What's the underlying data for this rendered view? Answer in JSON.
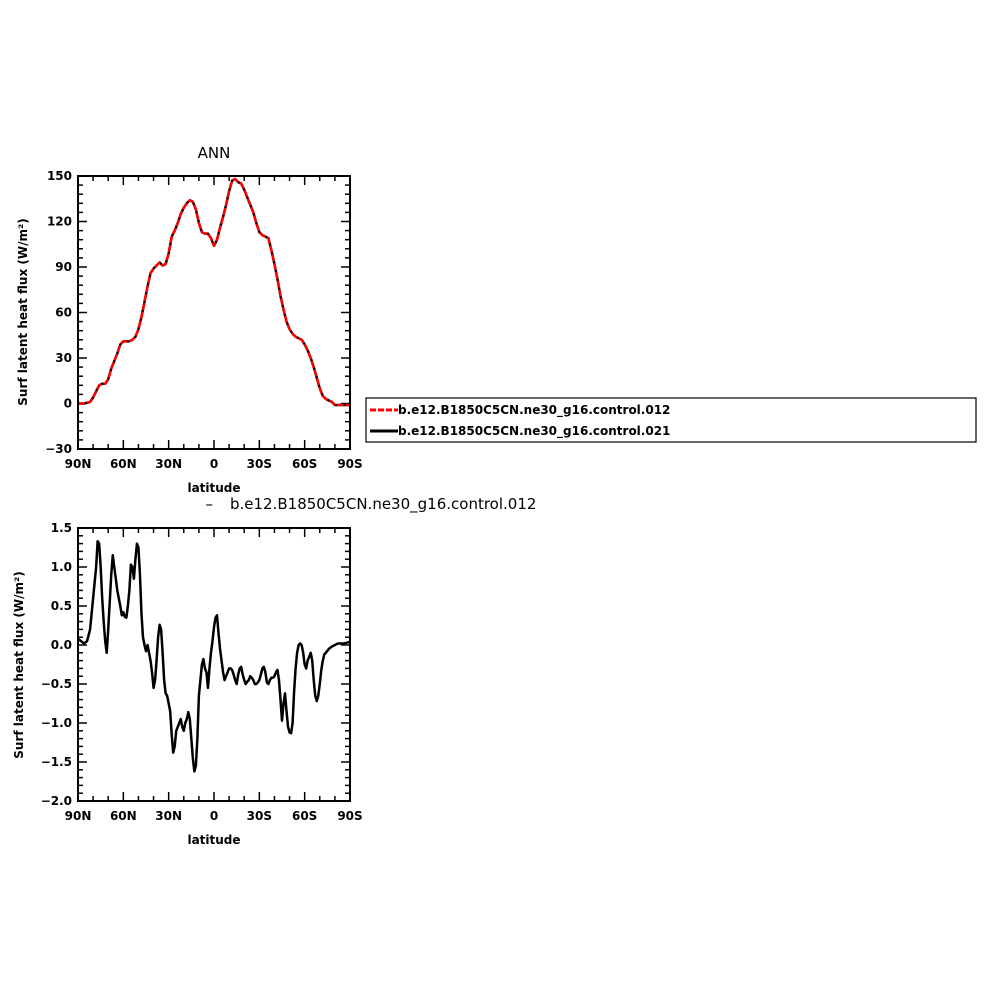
{
  "figure": {
    "top_title": "ANN",
    "diff_title": "b.e12.B1850C5CN.ne30_g16.control.012",
    "diff_title_marker": "–"
  },
  "legend": {
    "position": "right",
    "entries": [
      {
        "label": "b.e12.B1850C5CN.ne30_g16.control.012",
        "color": "#ff0000",
        "dashed": true
      },
      {
        "label": "b.e12.B1850C5CN.ne30_g16.control.021",
        "color": "#000000",
        "dashed": false
      }
    ]
  },
  "chart_data": [
    {
      "type": "line",
      "title": "ANN",
      "xlabel": "latitude",
      "ylabel": "Surf latent heat flux (W/m²)",
      "xlim": [
        90,
        -90
      ],
      "ylim": [
        -30,
        150
      ],
      "x_ticks": [
        90,
        60,
        30,
        0,
        -30,
        -60,
        -90
      ],
      "x_tick_labels": [
        "90N",
        "60N",
        "30N",
        "0",
        "30S",
        "60S",
        "90S"
      ],
      "y_ticks": [
        -30,
        0,
        30,
        60,
        90,
        120,
        150
      ],
      "y_tick_labels": [
        "−30",
        "0",
        "30",
        "60",
        "90",
        "120",
        "150"
      ],
      "x": [
        90,
        86,
        82,
        80,
        78,
        76,
        74,
        72,
        70,
        68,
        66,
        64,
        62,
        60,
        58,
        56,
        54,
        52,
        50,
        48,
        46,
        44,
        42,
        40,
        38,
        36,
        34,
        32,
        30,
        28,
        26,
        24,
        22,
        20,
        18,
        16,
        14,
        12,
        10,
        8,
        6,
        4,
        2,
        0,
        -2,
        -4,
        -6,
        -8,
        -10,
        -12,
        -14,
        -16,
        -18,
        -20,
        -22,
        -24,
        -26,
        -28,
        -30,
        -32,
        -34,
        -36,
        -38,
        -40,
        -42,
        -44,
        -46,
        -48,
        -50,
        -52,
        -54,
        -56,
        -58,
        -60,
        -62,
        -64,
        -66,
        -68,
        -70,
        -72,
        -74,
        -76,
        -78,
        -80,
        -82,
        -84,
        -86,
        -88,
        -90
      ],
      "series": [
        {
          "name": "b.e12.B1850C5CN.ne30_g16.control.012",
          "color": "#ff0000",
          "dashed": true,
          "values": [
            0,
            0,
            1,
            4,
            8,
            12,
            13,
            13,
            16,
            23,
            28,
            33,
            39,
            41,
            41,
            41,
            42,
            44,
            49,
            57,
            67,
            77,
            86,
            89,
            91,
            93,
            91,
            92,
            99,
            110,
            114,
            119,
            125,
            129,
            132,
            134,
            133,
            128,
            119,
            113,
            112,
            112,
            109,
            104,
            108,
            116,
            123,
            131,
            140,
            147,
            148,
            146,
            145,
            141,
            136,
            131,
            126,
            119,
            113,
            111,
            110,
            109,
            101,
            92,
            82,
            71,
            62,
            54,
            49,
            46,
            44,
            43,
            42,
            39,
            35,
            30,
            24,
            17,
            10,
            5,
            3,
            2,
            1,
            -1,
            -1,
            -1,
            -1,
            -1,
            -1
          ]
        },
        {
          "name": "b.e12.B1850C5CN.ne30_g16.control.021",
          "color": "#000000",
          "dashed": false,
          "values": [
            0,
            0,
            1,
            4,
            8,
            12,
            13,
            13,
            16,
            23,
            28,
            33,
            39,
            41,
            41,
            41,
            42,
            44,
            49,
            57,
            67,
            77,
            86,
            89,
            91,
            93,
            91,
            92,
            99,
            110,
            114,
            119,
            125,
            129,
            132,
            134,
            133,
            128,
            119,
            113,
            112,
            112,
            109,
            104,
            108,
            116,
            123,
            131,
            140,
            147,
            148,
            146,
            145,
            141,
            136,
            131,
            126,
            119,
            113,
            111,
            110,
            109,
            101,
            92,
            82,
            71,
            62,
            54,
            49,
            46,
            44,
            43,
            42,
            39,
            35,
            30,
            24,
            17,
            10,
            5,
            3,
            2,
            1,
            -1,
            -1,
            -1,
            -1,
            -1,
            -1
          ]
        }
      ]
    },
    {
      "type": "line",
      "title": "b.e12.B1850C5CN.ne30_g16.control.012",
      "xlabel": "latitude",
      "ylabel": "Surf latent heat flux (W/m²)",
      "xlim": [
        90,
        -90
      ],
      "ylim": [
        -2.0,
        1.5
      ],
      "x_ticks": [
        90,
        60,
        30,
        0,
        -30,
        -60,
        -90
      ],
      "x_tick_labels": [
        "90N",
        "60N",
        "30N",
        "0",
        "30S",
        "60S",
        "90S"
      ],
      "y_ticks": [
        -2.0,
        -1.5,
        -1.0,
        -0.5,
        0.0,
        0.5,
        1.0,
        1.5
      ],
      "y_tick_labels": [
        "−2.0",
        "−1.5",
        "−1.0",
        "−0.5",
        "0.0",
        "0.5",
        "1.0",
        "1.5"
      ],
      "x": [
        90,
        88,
        86,
        84,
        82,
        80,
        78,
        77,
        76,
        75,
        74,
        73,
        72,
        71,
        70,
        68,
        67,
        66,
        65,
        64,
        63,
        62,
        61,
        60,
        59,
        58,
        57,
        56,
        55,
        54,
        53,
        52,
        51,
        50,
        49,
        48,
        47,
        46,
        45,
        44,
        43,
        42,
        41,
        40,
        39,
        38,
        37,
        36,
        35,
        34,
        33,
        32,
        31,
        30,
        29,
        28,
        27,
        26,
        25,
        24,
        23,
        22,
        21,
        20,
        19,
        18,
        17,
        16,
        15,
        14,
        13,
        12,
        11,
        10,
        9,
        8,
        7,
        6,
        5,
        4,
        3,
        2,
        1,
        0,
        -1,
        -2,
        -3,
        -4,
        -5,
        -6,
        -7,
        -8,
        -9,
        -10,
        -11,
        -12,
        -13,
        -14,
        -15,
        -16,
        -17,
        -18,
        -19,
        -20,
        -21,
        -22,
        -23,
        -24,
        -25,
        -26,
        -27,
        -28,
        -29,
        -30,
        -31,
        -32,
        -33,
        -34,
        -35,
        -36,
        -37,
        -38,
        -39,
        -40,
        -41,
        -42,
        -43,
        -44,
        -45,
        -46,
        -47,
        -48,
        -49,
        -50,
        -51,
        -52,
        -53,
        -54,
        -55,
        -56,
        -57,
        -58,
        -59,
        -60,
        -61,
        -62,
        -63,
        -64,
        -65,
        -66,
        -67,
        -68,
        -69,
        -70,
        -71,
        -72,
        -73,
        -74,
        -76,
        -78,
        -80,
        -82,
        -84,
        -86,
        -88,
        -90
      ],
      "series": [
        {
          "name": "",
          "color": "#000000",
          "dashed": false,
          "values": [
            0.08,
            0.05,
            0.02,
            0.05,
            0.2,
            0.6,
            1.0,
            1.33,
            1.3,
            1.0,
            0.6,
            0.3,
            0.05,
            -0.1,
            0.2,
            0.9,
            1.15,
            1.0,
            0.85,
            0.7,
            0.6,
            0.5,
            0.38,
            0.42,
            0.36,
            0.35,
            0.5,
            0.7,
            1.03,
            1.0,
            0.85,
            1.1,
            1.3,
            1.25,
            0.9,
            0.4,
            0.1,
            0.0,
            -0.08,
            0.0,
            -0.1,
            -0.2,
            -0.35,
            -0.55,
            -0.45,
            -0.2,
            0.1,
            0.26,
            0.2,
            -0.1,
            -0.45,
            -0.62,
            -0.65,
            -0.75,
            -0.85,
            -1.15,
            -1.38,
            -1.3,
            -1.1,
            -1.05,
            -1.0,
            -0.95,
            -1.05,
            -1.1,
            -1.0,
            -0.95,
            -0.86,
            -0.95,
            -1.2,
            -1.45,
            -1.62,
            -1.55,
            -1.2,
            -0.65,
            -0.45,
            -0.25,
            -0.18,
            -0.3,
            -0.35,
            -0.55,
            -0.3,
            -0.1,
            0.05,
            0.23,
            0.35,
            0.38,
            0.15,
            -0.05,
            -0.2,
            -0.35,
            -0.45,
            -0.4,
            -0.35,
            -0.3,
            -0.3,
            -0.32,
            -0.38,
            -0.45,
            -0.5,
            -0.38,
            -0.3,
            -0.28,
            -0.38,
            -0.45,
            -0.5,
            -0.47,
            -0.45,
            -0.4,
            -0.42,
            -0.45,
            -0.5,
            -0.5,
            -0.48,
            -0.45,
            -0.38,
            -0.3,
            -0.28,
            -0.35,
            -0.48,
            -0.5,
            -0.45,
            -0.42,
            -0.42,
            -0.4,
            -0.35,
            -0.32,
            -0.45,
            -0.7,
            -0.97,
            -0.75,
            -0.62,
            -0.85,
            -1.05,
            -1.12,
            -1.13,
            -1.0,
            -0.6,
            -0.3,
            -0.1,
            0.0,
            0.02,
            0.0,
            -0.1,
            -0.25,
            -0.3,
            -0.2,
            -0.15,
            -0.1,
            -0.2,
            -0.45,
            -0.65,
            -0.72,
            -0.65,
            -0.5,
            -0.32,
            -0.2,
            -0.12,
            -0.1,
            -0.05,
            -0.02,
            0.0,
            0.02,
            0.02,
            0.02,
            0.03,
            0.04
          ]
        }
      ]
    }
  ]
}
